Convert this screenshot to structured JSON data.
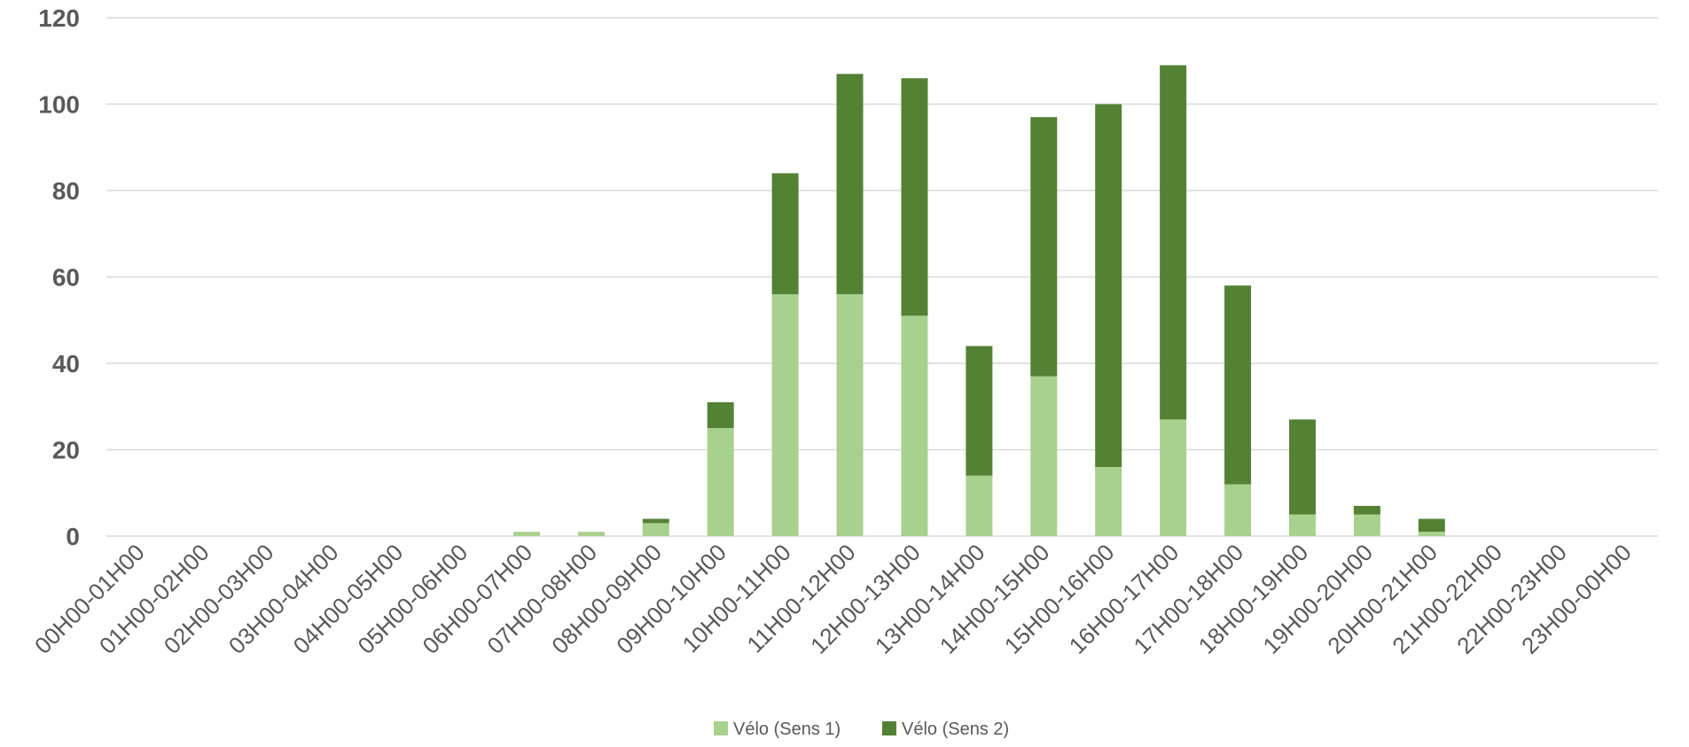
{
  "chart_data": {
    "type": "bar",
    "stacked": true,
    "categories": [
      "00H00-01H00",
      "01H00-02H00",
      "02H00-03H00",
      "03H00-04H00",
      "04H00-05H00",
      "05H00-06H00",
      "06H00-07H00",
      "07H00-08H00",
      "08H00-09H00",
      "09H00-10H00",
      "10H00-11H00",
      "11H00-12H00",
      "12H00-13H00",
      "13H00-14H00",
      "14H00-15H00",
      "15H00-16H00",
      "16H00-17H00",
      "17H00-18H00",
      "18H00-19H00",
      "19H00-20H00",
      "20H00-21H00",
      "21H00-22H00",
      "22H00-23H00",
      "23H00-00H00"
    ],
    "series": [
      {
        "name": "Vélo (Sens 1)",
        "color": "#a9d18e",
        "values": [
          0,
          0,
          0,
          0,
          0,
          0,
          1,
          1,
          3,
          25,
          56,
          56,
          51,
          14,
          37,
          16,
          27,
          12,
          5,
          5,
          1,
          0,
          0,
          0
        ]
      },
      {
        "name": "Vélo (Sens 2)",
        "color": "#548235",
        "values": [
          0,
          0,
          0,
          0,
          0,
          0,
          0,
          0,
          1,
          6,
          28,
          51,
          55,
          30,
          60,
          84,
          82,
          46,
          22,
          2,
          3,
          0,
          0,
          0
        ]
      }
    ],
    "yticks": [
      "0",
      "20",
      "40",
      "60",
      "80",
      "100",
      "120"
    ],
    "ylim": [
      0,
      120
    ],
    "grid": true,
    "gridColor": "#d9d9d9",
    "legend": "bottom-center"
  }
}
